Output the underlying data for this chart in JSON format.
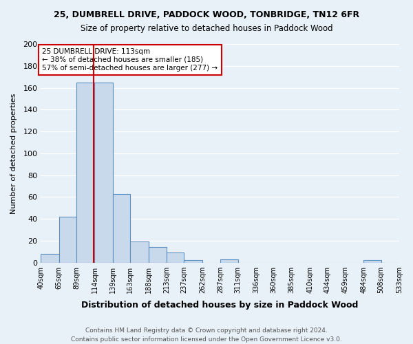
{
  "title1": "25, DUMBRELL DRIVE, PADDOCK WOOD, TONBRIDGE, TN12 6FR",
  "title2": "Size of property relative to detached houses in Paddock Wood",
  "xlabel": "Distribution of detached houses by size in Paddock Wood",
  "ylabel": "Number of detached properties",
  "footnote1": "Contains HM Land Registry data © Crown copyright and database right 2024.",
  "footnote2": "Contains public sector information licensed under the Open Government Licence v3.0.",
  "bar_edges": [
    40,
    65,
    89,
    114,
    139,
    163,
    188,
    213,
    237,
    262,
    287,
    311,
    336,
    360,
    385,
    410,
    434,
    459,
    484,
    508,
    533
  ],
  "bar_heights": [
    8,
    42,
    165,
    165,
    63,
    19,
    14,
    9,
    2,
    0,
    3,
    0,
    0,
    0,
    0,
    0,
    0,
    0,
    2,
    0
  ],
  "bar_color": "#c8d9ec",
  "bar_edge_color": "#5a8fc0",
  "bg_color": "#e8f0f8",
  "grid_color": "#ffffff",
  "property_line_x": 113,
  "property_line_color": "#cc0000",
  "annotation_text": "25 DUMBRELL DRIVE: 113sqm\n← 38% of detached houses are smaller (185)\n57% of semi-detached houses are larger (277) →",
  "annotation_box_color": "#ffffff",
  "annotation_box_edge_color": "#cc0000",
  "ylim": [
    0,
    200
  ],
  "yticks": [
    0,
    20,
    40,
    60,
    80,
    100,
    120,
    140,
    160,
    180,
    200
  ],
  "tick_labels": [
    "40sqm",
    "65sqm",
    "89sqm",
    "114sqm",
    "139sqm",
    "163sqm",
    "188sqm",
    "213sqm",
    "237sqm",
    "262sqm",
    "287sqm",
    "311sqm",
    "336sqm",
    "360sqm",
    "385sqm",
    "410sqm",
    "434sqm",
    "459sqm",
    "484sqm",
    "508sqm",
    "533sqm"
  ]
}
